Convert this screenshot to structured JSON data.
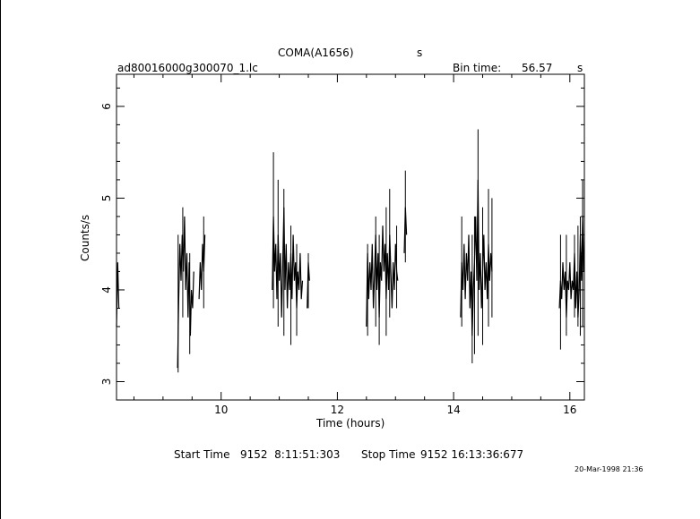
{
  "header": {
    "object": "COMA(A1656)",
    "object_suffix": "s",
    "filename": "ad80016000g300070_1.lc",
    "bin_time_label": "Bin time:",
    "bin_time_value": "56.57",
    "bin_time_unit": "s"
  },
  "footer": {
    "start_label": "Start Time",
    "start_value": "9152  8:11:51:303",
    "stop_label": "Stop Time",
    "stop_value": "9152 16:13:36:677",
    "timestamp": "20-Mar-1998 21:36"
  },
  "chart_data": {
    "type": "line",
    "title": "COMA(A1656)",
    "xlabel": "Time (hours)",
    "ylabel": "Counts/s",
    "xlim": [
      8.2,
      16.25
    ],
    "ylim": [
      2.8,
      6.35
    ],
    "xticks": [
      10,
      12,
      14,
      16
    ],
    "yticks": [
      3,
      4,
      5,
      6
    ],
    "grid": false,
    "segments": [
      {
        "points": [
          [
            8.2,
            3.6
          ],
          [
            8.22,
            4.3
          ],
          [
            8.24,
            3.8
          ]
        ]
      },
      {
        "points": [
          [
            9.25,
            3.15
          ],
          [
            9.27,
            3.9
          ],
          [
            9.29,
            4.5
          ],
          [
            9.31,
            4.1
          ],
          [
            9.33,
            4.6
          ],
          [
            9.35,
            4.2
          ],
          [
            9.37,
            4.8
          ],
          [
            9.39,
            4.0
          ],
          [
            9.41,
            4.4
          ],
          [
            9.43,
            3.7
          ],
          [
            9.45,
            4.3
          ],
          [
            9.47,
            3.5
          ],
          [
            9.49,
            4.0
          ],
          [
            9.51,
            3.8
          ],
          [
            9.53,
            4.2
          ]
        ]
      },
      {
        "points": [
          [
            9.62,
            3.9
          ],
          [
            9.64,
            4.3
          ],
          [
            9.66,
            4.0
          ],
          [
            9.68,
            4.5
          ],
          [
            9.7,
            4.2
          ],
          [
            9.72,
            4.6
          ]
        ]
      },
      {
        "points": [
          [
            10.88,
            4.0
          ],
          [
            10.9,
            4.8
          ],
          [
            10.92,
            4.2
          ],
          [
            10.94,
            4.5
          ],
          [
            10.96,
            3.9
          ],
          [
            10.98,
            4.6
          ],
          [
            11.0,
            4.1
          ],
          [
            11.02,
            4.4
          ],
          [
            11.04,
            3.7
          ],
          [
            11.06,
            4.3
          ],
          [
            11.08,
            4.9
          ],
          [
            11.1,
            4.0
          ],
          [
            11.12,
            4.5
          ],
          [
            11.14,
            3.8
          ],
          [
            11.16,
            4.3
          ],
          [
            11.18,
            4.0
          ],
          [
            11.2,
            4.4
          ],
          [
            11.22,
            3.9
          ],
          [
            11.24,
            4.6
          ],
          [
            11.26,
            4.1
          ],
          [
            11.28,
            4.3
          ],
          [
            11.3,
            3.8
          ],
          [
            11.32,
            4.2
          ],
          [
            11.34,
            4.0
          ],
          [
            11.36,
            4.4
          ],
          [
            11.38,
            3.9
          ],
          [
            11.4,
            4.1
          ]
        ]
      },
      {
        "points": [
          [
            11.48,
            3.8
          ],
          [
            11.5,
            4.3
          ],
          [
            11.52,
            4.1
          ]
        ]
      },
      {
        "points": [
          [
            12.5,
            3.6
          ],
          [
            12.52,
            4.4
          ],
          [
            12.54,
            3.9
          ],
          [
            12.56,
            4.3
          ],
          [
            12.58,
            4.0
          ],
          [
            12.6,
            4.5
          ],
          [
            12.62,
            3.8
          ],
          [
            12.64,
            4.2
          ],
          [
            12.66,
            4.6
          ],
          [
            12.68,
            4.0
          ],
          [
            12.7,
            4.4
          ],
          [
            12.72,
            3.7
          ],
          [
            12.74,
            4.3
          ],
          [
            12.76,
            4.1
          ],
          [
            12.78,
            4.7
          ],
          [
            12.8,
            4.2
          ],
          [
            12.82,
            4.5
          ],
          [
            12.84,
            3.9
          ],
          [
            12.86,
            4.4
          ],
          [
            12.88,
            4.0
          ],
          [
            12.9,
            4.6
          ],
          [
            12.92,
            4.2
          ],
          [
            12.94,
            3.8
          ],
          [
            12.96,
            4.3
          ],
          [
            12.98,
            4.0
          ],
          [
            13.0,
            4.5
          ],
          [
            13.02,
            4.2
          ],
          [
            13.04,
            4.1
          ]
        ]
      },
      {
        "points": [
          [
            13.15,
            4.4
          ],
          [
            13.17,
            4.9
          ],
          [
            13.19,
            4.6
          ]
        ]
      },
      {
        "points": [
          [
            14.12,
            3.7
          ],
          [
            14.14,
            4.3
          ],
          [
            14.16,
            4.0
          ],
          [
            14.18,
            4.5
          ],
          [
            14.2,
            3.9
          ],
          [
            14.22,
            4.4
          ],
          [
            14.24,
            4.1
          ],
          [
            14.26,
            4.6
          ],
          [
            14.28,
            3.8
          ],
          [
            14.3,
            4.2
          ],
          [
            14.32,
            3.5
          ],
          [
            14.34,
            4.0
          ],
          [
            14.36,
            4.3
          ],
          [
            14.38,
            4.8
          ],
          [
            14.4,
            4.1
          ],
          [
            14.42,
            5.2
          ],
          [
            14.44,
            4.0
          ],
          [
            14.46,
            4.4
          ],
          [
            14.48,
            3.8
          ],
          [
            14.5,
            4.2
          ],
          [
            14.52,
            4.6
          ],
          [
            14.54,
            4.0
          ],
          [
            14.56,
            4.3
          ],
          [
            14.58,
            3.9
          ],
          [
            14.6,
            4.5
          ],
          [
            14.62,
            4.1
          ],
          [
            14.64,
            4.4
          ],
          [
            14.66,
            4.2
          ]
        ]
      },
      {
        "points": [
          [
            15.82,
            3.8
          ],
          [
            15.84,
            4.1
          ],
          [
            15.86,
            3.9
          ],
          [
            15.88,
            4.3
          ],
          [
            15.9,
            4.0
          ],
          [
            15.92,
            4.2
          ],
          [
            15.94,
            3.7
          ],
          [
            15.96,
            4.1
          ],
          [
            15.98,
            4.0
          ],
          [
            16.0,
            4.3
          ],
          [
            16.02,
            3.9
          ],
          [
            16.04,
            4.1
          ],
          [
            16.06,
            4.0
          ],
          [
            16.08,
            4.4
          ],
          [
            16.1,
            3.8
          ],
          [
            16.12,
            4.2
          ],
          [
            16.14,
            3.7
          ],
          [
            16.16,
            4.0
          ],
          [
            16.18,
            4.6
          ],
          [
            16.2,
            4.1
          ],
          [
            16.22,
            4.8
          ],
          [
            16.24,
            4.2
          ]
        ]
      }
    ],
    "error_bars": [
      {
        "x": 9.26,
        "low": 3.1,
        "high": 4.6
      },
      {
        "x": 9.34,
        "low": 3.7,
        "high": 4.9
      },
      {
        "x": 9.46,
        "low": 3.3,
        "high": 4.4
      },
      {
        "x": 9.7,
        "low": 3.8,
        "high": 4.8
      },
      {
        "x": 10.9,
        "low": 3.8,
        "high": 5.5
      },
      {
        "x": 10.98,
        "low": 3.6,
        "high": 5.2
      },
      {
        "x": 11.08,
        "low": 3.5,
        "high": 5.1
      },
      {
        "x": 11.2,
        "low": 3.4,
        "high": 4.7
      },
      {
        "x": 11.3,
        "low": 3.5,
        "high": 4.5
      },
      {
        "x": 11.5,
        "low": 3.8,
        "high": 4.4
      },
      {
        "x": 12.52,
        "low": 3.5,
        "high": 4.5
      },
      {
        "x": 12.66,
        "low": 3.6,
        "high": 4.8
      },
      {
        "x": 12.72,
        "low": 3.4,
        "high": 4.6
      },
      {
        "x": 12.84,
        "low": 3.5,
        "high": 4.9
      },
      {
        "x": 12.9,
        "low": 3.7,
        "high": 5.1
      },
      {
        "x": 13.02,
        "low": 3.8,
        "high": 4.7
      },
      {
        "x": 13.17,
        "low": 4.3,
        "high": 5.3
      },
      {
        "x": 14.14,
        "low": 3.6,
        "high": 4.8
      },
      {
        "x": 14.32,
        "low": 3.2,
        "high": 4.6
      },
      {
        "x": 14.36,
        "low": 3.3,
        "high": 4.8
      },
      {
        "x": 14.42,
        "low": 3.5,
        "high": 5.75
      },
      {
        "x": 14.5,
        "low": 3.4,
        "high": 4.9
      },
      {
        "x": 14.6,
        "low": 3.6,
        "high": 5.1
      },
      {
        "x": 14.66,
        "low": 3.7,
        "high": 5.0
      },
      {
        "x": 15.84,
        "low": 3.35,
        "high": 4.6
      },
      {
        "x": 15.94,
        "low": 3.5,
        "high": 4.6
      },
      {
        "x": 16.08,
        "low": 3.7,
        "high": 4.6
      },
      {
        "x": 16.14,
        "low": 3.6,
        "high": 4.7
      },
      {
        "x": 16.18,
        "low": 3.5,
        "high": 4.8
      },
      {
        "x": 16.22,
        "low": 3.6,
        "high": 5.2
      }
    ]
  }
}
